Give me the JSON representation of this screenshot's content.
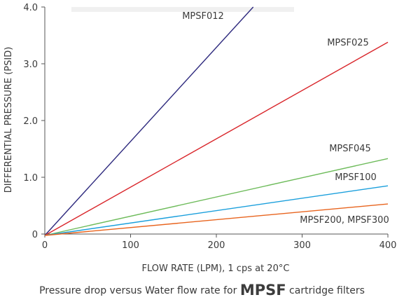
{
  "chart_data": {
    "type": "line",
    "xlabel": "FLOW RATE (LPM), 1 cps at 20°C",
    "ylabel": "DIFFERENTIAL PRESSURE (PSID)",
    "xlim": [
      0,
      400
    ],
    "ylim": [
      0,
      4.0
    ],
    "x_ticks": [
      "0",
      "100",
      "200",
      "300",
      "400"
    ],
    "y_ticks": [
      "0",
      "1.0",
      "2.0",
      "3.0",
      "4.0"
    ],
    "grid": false,
    "series": [
      {
        "name": "MPSF012",
        "color": "#2e2a7e",
        "x": [
          0,
          243
        ],
        "y": [
          0,
          4.0
        ]
      },
      {
        "name": "MPSF025",
        "color": "#d9262b",
        "x": [
          0,
          400
        ],
        "y": [
          0,
          3.38
        ]
      },
      {
        "name": "MPSF045",
        "color": "#6dbb5a",
        "x": [
          0,
          400
        ],
        "y": [
          0,
          1.33
        ]
      },
      {
        "name": "MPSF100",
        "color": "#1a9fdc",
        "x": [
          0,
          400
        ],
        "y": [
          0,
          0.85
        ]
      },
      {
        "name": "MPSF200, MPSF300",
        "color": "#e8641e",
        "x": [
          0,
          400
        ],
        "y": [
          0,
          0.53
        ]
      }
    ]
  },
  "caption": {
    "prefix": "Pressure drop versus Water flow rate for ",
    "brand": "MPSF",
    "suffix": " cartridge filters"
  }
}
